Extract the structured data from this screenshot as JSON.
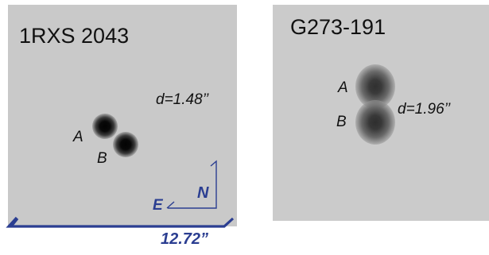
{
  "left_panel": {
    "title": "1RXS 2043",
    "star_a_label": "A",
    "star_b_label": "B",
    "separation": "d=1.48’’",
    "north_label": "N",
    "east_label": "E",
    "scale_label": "12.72”",
    "background_color": "#c9c9c9",
    "compass_color": "#2b3e91"
  },
  "right_panel": {
    "title": "G273-191",
    "star_a_label": "A",
    "star_b_label": "B",
    "separation": "d=1.96’’",
    "background_color": "#cbcbcb"
  }
}
